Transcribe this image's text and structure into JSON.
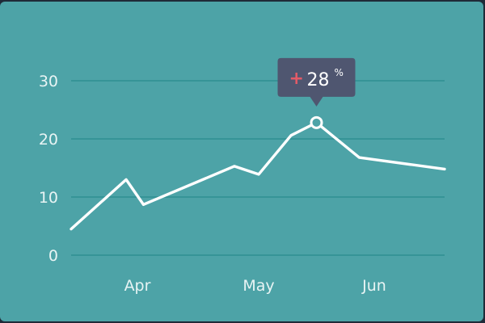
{
  "chart_data": {
    "type": "line",
    "title": "",
    "xlabel": "",
    "ylabel": "",
    "ylim": [
      0,
      30
    ],
    "yticks": [
      0,
      10,
      20,
      30
    ],
    "xticks": [
      {
        "label": "Apr",
        "x": 1.0
      },
      {
        "label": "May",
        "x": 2.0
      },
      {
        "label": "Jun",
        "x": 3.0
      }
    ],
    "xlim": [
      0.2,
      3.6
    ],
    "grid": true,
    "series": [
      {
        "x": [
          0.0,
          0.83,
          1.05,
          1.8,
          2.0,
          2.28,
          2.5,
          2.87,
          3.6
        ],
        "values": [
          4.5,
          13.0,
          8.7,
          15.3,
          13.9,
          20.6,
          22.8,
          16.8,
          14.8
        ]
      }
    ],
    "highlight": {
      "index": 6,
      "label_sign": "+",
      "label_value": "28",
      "label_unit": "%"
    },
    "colors": {
      "background": "#4da3a7",
      "line": "#ffffff",
      "grid": "#2f8f92",
      "tooltip_bg": "#4f5670",
      "tooltip_plus": "#e25b67"
    }
  }
}
